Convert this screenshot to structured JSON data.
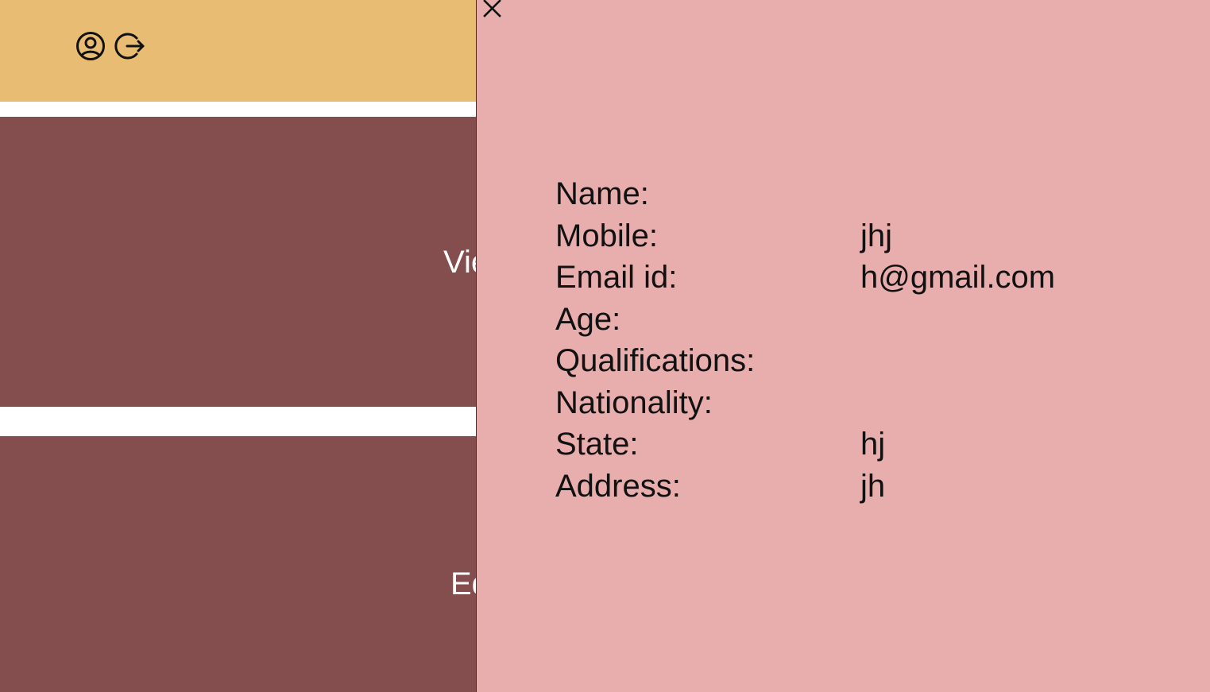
{
  "header": {
    "profile_icon": "user-circle-icon",
    "logout_icon": "logout-icon",
    "background_color": "#e8bd73"
  },
  "cards": [
    {
      "label": "Vie",
      "background_color": "#844e4e"
    },
    {
      "label": "Ed",
      "background_color": "#844e4e"
    }
  ],
  "drawer": {
    "background_color": "#e8adad",
    "close_icon": "close-icon",
    "fields": [
      {
        "label": "Name:",
        "value": ""
      },
      {
        "label": "Mobile:",
        "value": "jhj"
      },
      {
        "label": "Email id:",
        "value": "h@gmail.com"
      },
      {
        "label": "Age:",
        "value": ""
      },
      {
        "label": "Qualifications:",
        "value": ""
      },
      {
        "label": "Nationality:",
        "value": ""
      },
      {
        "label": "State:",
        "value": "hj"
      },
      {
        "label": "Address:",
        "value": "jh"
      }
    ]
  }
}
